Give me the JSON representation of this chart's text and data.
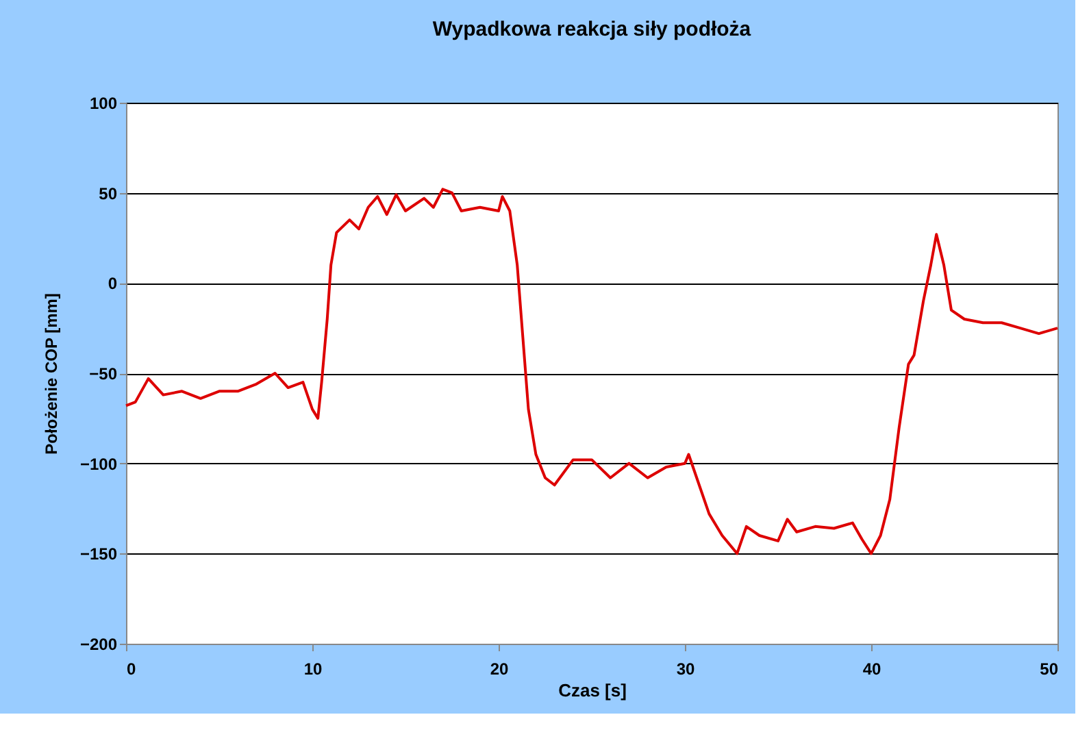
{
  "chart_data": {
    "type": "line",
    "title": "Wypadkowa reakcja siły podłoża",
    "xlabel": "Czas [s]",
    "ylabel": "Położenie COP [mm]",
    "xlim": [
      0,
      50
    ],
    "xticks": [
      0,
      10,
      20,
      30,
      40,
      50
    ],
    "ylim": [
      -200,
      100
    ],
    "yticks": [
      -200,
      -150,
      -100,
      -50,
      0,
      50,
      100
    ],
    "grid": "y",
    "series": [
      {
        "color": "#dd0000",
        "x": [
          0,
          0.5,
          1.2,
          2,
          3,
          4,
          5,
          6,
          7,
          8,
          8.7,
          9.5,
          10,
          10.3,
          10.5,
          10.8,
          11,
          11.3,
          12,
          12.5,
          13,
          13.5,
          14,
          14.5,
          15,
          16,
          16.5,
          17,
          17.5,
          18,
          19,
          20,
          20.2,
          20.6,
          21,
          21.3,
          21.6,
          22,
          22.5,
          23,
          24,
          25,
          26,
          27,
          28,
          29,
          30,
          30.2,
          30.7,
          31.3,
          32,
          32.8,
          33.3,
          34,
          35,
          35.5,
          36,
          37,
          38,
          39,
          39.5,
          40,
          40.5,
          41,
          41.5,
          42,
          42.3,
          42.8,
          43.2,
          43.5,
          43.9,
          44.3,
          45,
          46,
          47,
          48,
          49,
          50
        ],
        "values": [
          -68,
          -66,
          -53,
          -62,
          -60,
          -64,
          -60,
          -60,
          -56,
          -50,
          -58,
          -55,
          -70,
          -75,
          -55,
          -20,
          10,
          28,
          35,
          30,
          42,
          48,
          38,
          49,
          40,
          47,
          42,
          52,
          50,
          40,
          42,
          40,
          48,
          40,
          10,
          -30,
          -70,
          -95,
          -108,
          -112,
          -98,
          -98,
          -108,
          -100,
          -108,
          -102,
          -100,
          -95,
          -110,
          -128,
          -140,
          -150,
          -135,
          -140,
          -143,
          -131,
          -138,
          -135,
          -136,
          -133,
          -142,
          -150,
          -140,
          -120,
          -80,
          -45,
          -40,
          -10,
          10,
          27,
          10,
          -15,
          -20,
          -22,
          -22,
          -25,
          -28,
          -25
        ]
      }
    ]
  }
}
